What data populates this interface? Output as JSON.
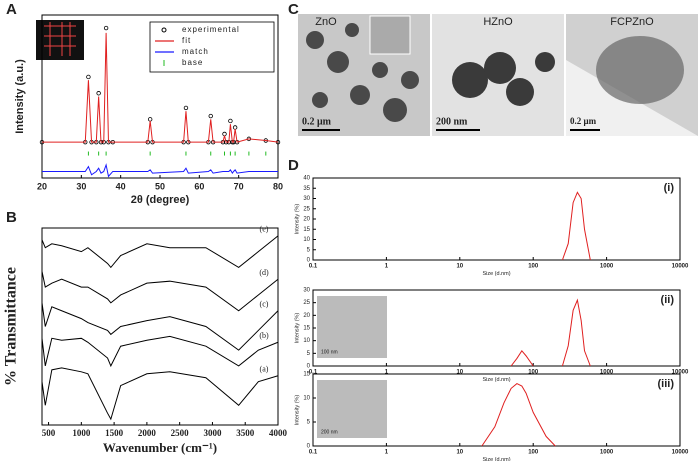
{
  "panel_labels": [
    "A",
    "B",
    "C",
    "D"
  ],
  "tem": {
    "images": [
      {
        "title": "ZnO",
        "scale": "0.2 μm"
      },
      {
        "title": "HZnO",
        "scale": "200 nm"
      },
      {
        "title": "FCPZnO",
        "scale": "0.2 μm"
      }
    ]
  },
  "chart_data": [
    {
      "type": "line",
      "xlabel": "2θ (degree)",
      "ylabel": "Intensity (a.u.)",
      "x": [
        20,
        31,
        31.8,
        32.6,
        33.8,
        34.4,
        35,
        35.7,
        36.3,
        36.9,
        38,
        46.9,
        47.5,
        48.1,
        56,
        56.6,
        57.2,
        62.3,
        62.9,
        63.5,
        66,
        66.4,
        66.8,
        67.5,
        67.9,
        68.4,
        68.7,
        69.1,
        69.6,
        72.6,
        76.9,
        80
      ],
      "xlim": [
        20,
        80
      ],
      "xticks": [
        20,
        30,
        40,
        50,
        60,
        70,
        80
      ],
      "ylim": [
        0,
        100
      ],
      "legend": "upper right",
      "series": [
        {
          "name": "experimental",
          "color": "#000000",
          "marker": "circle",
          "values": [
            22,
            22,
            62,
            22,
            22,
            52,
            22,
            22,
            92,
            22,
            22,
            22,
            36,
            22,
            22,
            43,
            22,
            22,
            38,
            22,
            22,
            27,
            22,
            22,
            35,
            22,
            22,
            31,
            22,
            24,
            23,
            22
          ]
        },
        {
          "name": "fit",
          "color": "#e02020",
          "marker": "none",
          "values": [
            22,
            22,
            60,
            22,
            22,
            50,
            22,
            22,
            89,
            22,
            22,
            22,
            35,
            22,
            22,
            41,
            22,
            22,
            36,
            22,
            22,
            26,
            22,
            22,
            33,
            22,
            22,
            30,
            22,
            24,
            23,
            22
          ]
        },
        {
          "name": "match",
          "color": "#1a1aff",
          "marker": "none",
          "values": [
            4,
            4,
            7,
            2,
            4,
            6,
            3,
            4,
            8,
            1,
            4,
            4,
            5,
            3,
            4,
            6,
            3,
            4,
            5,
            3,
            4,
            4,
            4,
            4,
            5,
            3,
            4,
            5,
            3,
            4,
            4,
            4
          ]
        },
        {
          "name": "base",
          "color": "#22bb22",
          "marker": "tick",
          "values": [
            null,
            null,
            15,
            null,
            null,
            15,
            null,
            null,
            15,
            null,
            null,
            null,
            15,
            null,
            null,
            15,
            null,
            null,
            15,
            null,
            null,
            15,
            null,
            null,
            15,
            null,
            null,
            15,
            null,
            15,
            15,
            null
          ]
        }
      ]
    },
    {
      "type": "line",
      "xlabel": "Wavenumber (cm⁻¹)",
      "ylabel": "% Transmittance",
      "x": [
        400,
        450,
        550,
        700,
        1000,
        1100,
        1400,
        1450,
        1600,
        2000,
        2350,
        2900,
        3400,
        3700,
        4000
      ],
      "xlim": [
        400,
        4000
      ],
      "xticks": [
        500,
        1000,
        1500,
        2000,
        2500,
        3000,
        3500,
        4000
      ],
      "ylim": [
        0,
        100
      ],
      "series": [
        {
          "name": "(a)",
          "color": "#000000",
          "values": [
            22,
            10,
            28,
            29,
            27,
            26,
            6,
            3,
            20,
            26,
            27,
            24,
            10,
            22,
            25
          ]
        },
        {
          "name": "(b)",
          "color": "#000000",
          "values": [
            44,
            30,
            44,
            43,
            44,
            42,
            34,
            30,
            40,
            43,
            45,
            40,
            30,
            38,
            42
          ]
        },
        {
          "name": "(c)",
          "color": "#000000",
          "values": [
            62,
            50,
            60,
            58,
            54,
            52,
            48,
            46,
            50,
            53,
            55,
            50,
            38,
            48,
            58
          ]
        },
        {
          "name": "(d)",
          "color": "#000000",
          "values": [
            78,
            70,
            72,
            74,
            70,
            70,
            64,
            62,
            66,
            72,
            73,
            70,
            58,
            66,
            74
          ]
        },
        {
          "name": "(e)",
          "color": "#000000",
          "values": [
            94,
            90,
            92,
            91,
            88,
            90,
            82,
            80,
            86,
            92,
            90,
            90,
            80,
            88,
            96
          ]
        }
      ]
    },
    {
      "type": "line",
      "panel_label": "(i)",
      "xlabel": "Size (d.nm)",
      "ylabel": "Intensity (%)",
      "xscale": "log",
      "x": [
        250,
        300,
        350,
        400,
        450,
        500,
        600
      ],
      "xlim": [
        0.1,
        10000
      ],
      "xticks": [
        0.1,
        1,
        10,
        100,
        1000,
        10000
      ],
      "ylim": [
        0,
        40
      ],
      "yticks": [
        0,
        5,
        10,
        15,
        20,
        25,
        30,
        35,
        40
      ],
      "series": [
        {
          "name": "size",
          "color": "#e02020",
          "values": [
            0,
            8,
            28,
            33,
            30,
            15,
            0
          ]
        }
      ]
    },
    {
      "type": "line",
      "panel_label": "(ii)",
      "inset_label": "100 nm",
      "xlabel": "Size (d.nm)",
      "ylabel": "Intensity (%)",
      "xscale": "log",
      "x": [
        50,
        60,
        70,
        80,
        100,
        150,
        250,
        300,
        350,
        400,
        450,
        500,
        600
      ],
      "xlim": [
        0.1,
        10000
      ],
      "xticks": [
        0.1,
        1,
        10,
        100,
        1000,
        10000
      ],
      "ylim": [
        0,
        30
      ],
      "yticks": [
        0,
        5,
        10,
        15,
        20,
        25,
        30
      ],
      "series": [
        {
          "name": "size",
          "color": "#e02020",
          "values": [
            0,
            3,
            6,
            4,
            0,
            null,
            0,
            8,
            22,
            26,
            18,
            6,
            0
          ]
        }
      ]
    },
    {
      "type": "line",
      "panel_label": "(iii)",
      "inset_label": "200 nm",
      "xlabel": "Size (d.nm)",
      "ylabel": "Intensity (%)",
      "xscale": "log",
      "x": [
        20,
        30,
        40,
        50,
        60,
        70,
        80,
        100,
        150,
        200
      ],
      "xlim": [
        0.1,
        10000
      ],
      "xticks": [
        0.1,
        1,
        10,
        100,
        1000,
        10000
      ],
      "ylim": [
        0,
        15
      ],
      "yticks": [
        0,
        5,
        10,
        15
      ],
      "series": [
        {
          "name": "size",
          "color": "#e02020",
          "values": [
            0,
            4,
            9,
            12,
            13,
            12.5,
            11,
            7,
            2,
            0
          ]
        }
      ]
    }
  ]
}
